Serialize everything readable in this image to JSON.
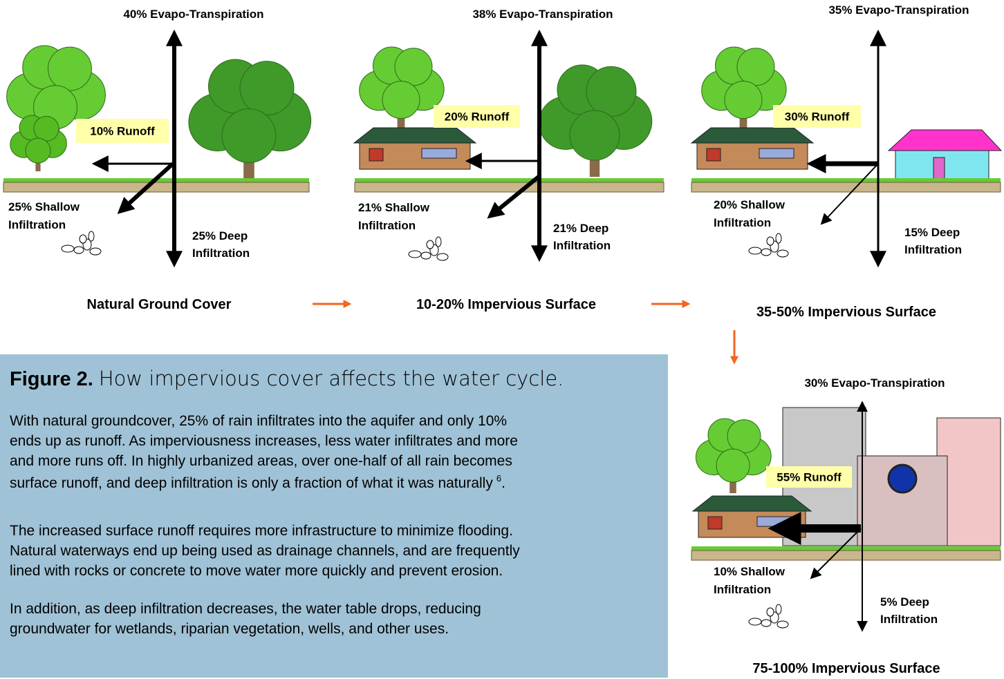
{
  "panels": [
    {
      "evapotranspiration": "40% Evapo-Transpiration",
      "runoff": "10% Runoff",
      "shallow": [
        "25% Shallow",
        "Infiltration"
      ],
      "deep": [
        "25% Deep",
        "Infiltration"
      ],
      "caption": "Natural Ground Cover"
    },
    {
      "evapotranspiration": "38% Evapo-Transpiration",
      "runoff": "20% Runoff",
      "shallow": [
        "21% Shallow",
        "Infiltration"
      ],
      "deep": [
        "21% Deep",
        "Infiltration"
      ],
      "caption": "10-20% Impervious Surface"
    },
    {
      "evapotranspiration": "35% Evapo-Transpiration",
      "runoff": "30% Runoff",
      "shallow": [
        "20% Shallow",
        "Infiltration"
      ],
      "deep": [
        "15% Deep",
        "Infiltration"
      ],
      "caption": "35-50% Impervious Surface"
    },
    {
      "evapotranspiration": "30% Evapo-Transpiration",
      "runoff": "55% Runoff",
      "shallow": [
        "10% Shallow",
        "Infiltration"
      ],
      "deep": [
        "5% Deep",
        "Infiltration"
      ],
      "caption": "75-100% Impervious Surface"
    }
  ],
  "figure": {
    "label": "Figure 2.",
    "title": "How impervious cover affects the water cycle.",
    "paragraphs": [
      {
        "lines": [
          "With natural groundcover, 25% of rain infiltrates into the aquifer and only 10%",
          "ends up as runoff. As imperviousness increases, less water infiltrates and more",
          "and more runs off. In highly urbanized areas, over one-half of all rain becomes",
          "surface runoff, and deep infiltration is only a fraction of what it was naturally"
        ],
        "note": "6",
        "end": "."
      },
      {
        "lines": [
          "The increased surface runoff requires more infrastructure to minimize flooding.",
          "Natural waterways end up being used as drainage channels, and are frequently",
          "lined with rocks or concrete to move water more quickly and prevent erosion."
        ]
      },
      {
        "lines": [
          "In addition, as deep infiltration decreases, the water table drops, reducing",
          "groundwater for wetlands, riparian vegetation, wells, and other uses."
        ]
      }
    ]
  }
}
